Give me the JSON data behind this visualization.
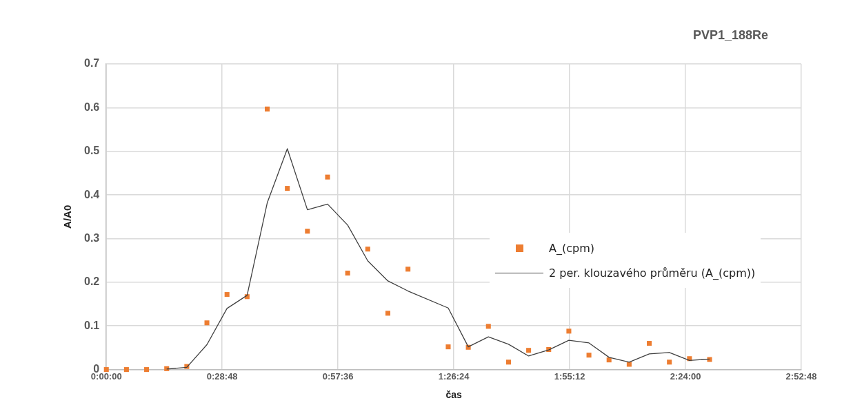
{
  "chart_data": {
    "type": "scatter",
    "title": "PVP1_188Re",
    "xlabel": "čas",
    "ylabel": "A/A0",
    "xlim": [
      0,
      2.88
    ],
    "xticks": [
      {
        "value": 0,
        "label": "0:00:00"
      },
      {
        "value": 0.48,
        "label": "0:28:48"
      },
      {
        "value": 0.96,
        "label": "0:57:36"
      },
      {
        "value": 1.44,
        "label": "1:26:24"
      },
      {
        "value": 1.92,
        "label": "1:55:12"
      },
      {
        "value": 2.4,
        "label": "2:24:00"
      },
      {
        "value": 2.88,
        "label": "2:52:48"
      }
    ],
    "ylim": [
      0,
      0.7
    ],
    "yticks": [
      0,
      0.1,
      0.2,
      0.3,
      0.4,
      0.5,
      0.6,
      0.7
    ],
    "grid": true,
    "legend": "right",
    "marker": "square",
    "series": [
      {
        "name": "A_(cpm)",
        "color": "#ed7d31",
        "x": [
          0,
          0.0833,
          0.1667,
          0.25,
          0.3333,
          0.4167,
          0.5,
          0.5833,
          0.6667,
          0.75,
          0.8333,
          0.9167,
          1.0,
          1.0833,
          1.1667,
          1.25,
          1.4167,
          1.5,
          1.5833,
          1.6667,
          1.75,
          1.8333,
          1.9167,
          2.0,
          2.0833,
          2.1667,
          2.25,
          2.3333,
          2.4167,
          2.5
        ],
        "values": [
          0,
          0,
          0,
          0.002,
          0.007,
          0.107,
          0.172,
          0.167,
          0.597,
          0.415,
          0.317,
          0.441,
          0.221,
          0.276,
          0.129,
          0.23,
          0.052,
          0.051,
          0.099,
          0.017,
          0.044,
          0.046,
          0.088,
          0.033,
          0.022,
          0.012,
          0.06,
          0.017,
          0.025,
          0.023
        ]
      },
      {
        "name": "2 per. klouzavého průměru (A_(cpm))",
        "type": "line",
        "marker": "none",
        "color": "#404040",
        "x": [
          0.25,
          0.3333,
          0.4167,
          0.5,
          0.5833,
          0.6667,
          0.75,
          0.8333,
          0.9167,
          1.0,
          1.0833,
          1.1667,
          1.25,
          1.4167,
          1.5,
          1.5833,
          1.6667,
          1.75,
          1.8333,
          1.9167,
          2.0,
          2.0833,
          2.1667,
          2.25,
          2.3333,
          2.4167,
          2.5
        ],
        "values": [
          0.001,
          0.005,
          0.057,
          0.14,
          0.17,
          0.382,
          0.506,
          0.366,
          0.379,
          0.331,
          0.249,
          0.203,
          0.18,
          0.141,
          0.052,
          0.075,
          0.058,
          0.031,
          0.045,
          0.067,
          0.061,
          0.028,
          0.017,
          0.036,
          0.039,
          0.021,
          0.024
        ]
      }
    ]
  }
}
